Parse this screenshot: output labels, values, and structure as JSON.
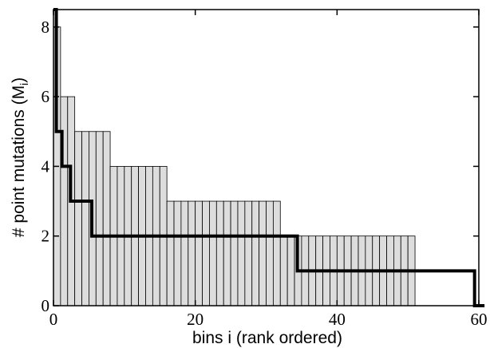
{
  "chart_data": {
    "type": "bar",
    "title": "",
    "xlabel": "bins i (rank ordered)",
    "ylabel_main": "# point mutations (M",
    "ylabel_sub": "i",
    "ylabel_close": ")",
    "xlim": [
      0,
      60
    ],
    "ylim": [
      0,
      8.5
    ],
    "xticks": [
      0,
      20,
      40,
      60
    ],
    "yticks": [
      0,
      2,
      4,
      6,
      8
    ],
    "grid": false,
    "colors": {
      "bars": "#dddddd",
      "bar_edge": "#000000",
      "step": "#000000",
      "axes": "#000000"
    },
    "series": [
      {
        "type": "histogram",
        "bin_width": 1,
        "values": [
          8,
          6,
          6,
          5,
          5,
          5,
          5,
          5,
          4,
          4,
          4,
          4,
          4,
          4,
          4,
          4,
          3,
          3,
          3,
          3,
          3,
          3,
          3,
          3,
          3,
          3,
          3,
          3,
          3,
          3,
          3,
          3,
          2,
          2,
          2,
          2,
          2,
          2,
          2,
          2,
          2,
          2,
          2,
          2,
          2,
          2,
          2,
          2,
          2,
          2,
          2
        ]
      },
      {
        "type": "step",
        "x": [
          0,
          0.4,
          0.4,
          1.2,
          1.2,
          2.4,
          2.4,
          5.4,
          5.4,
          15.4,
          15.4,
          34.4,
          34.4,
          59.4,
          59.4,
          60.8
        ],
        "y": [
          8.5,
          8.5,
          5,
          5,
          4,
          4,
          3,
          3,
          2,
          2,
          2,
          2,
          1,
          1,
          0,
          0
        ]
      }
    ]
  }
}
